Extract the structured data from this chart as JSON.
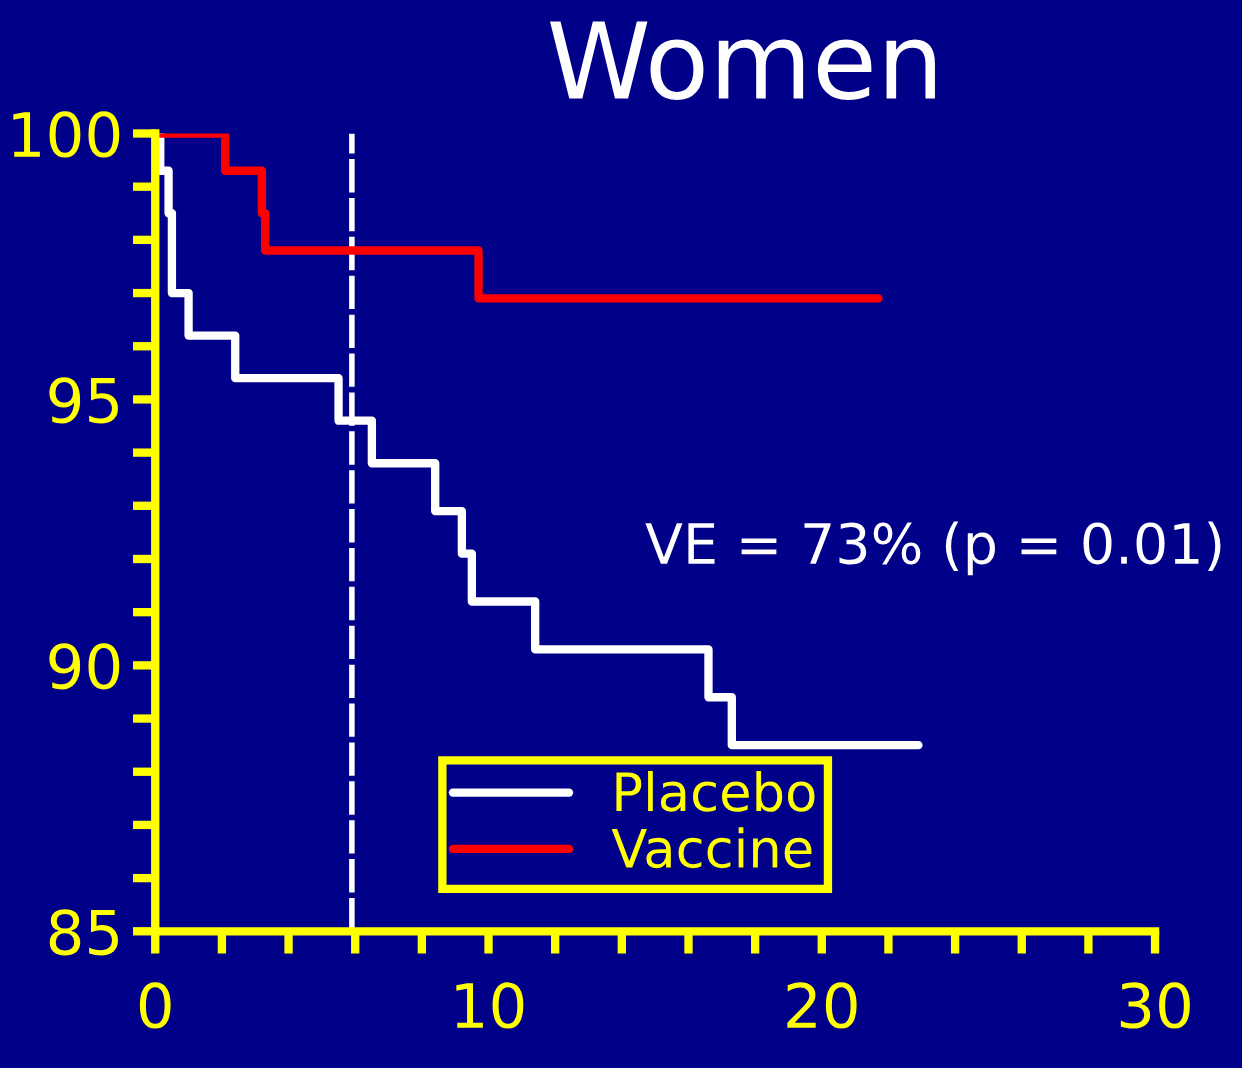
{
  "chart_data": {
    "type": "step",
    "title": "Women",
    "series": [
      {
        "name": "Placebo",
        "color": "#ffffff",
        "x": [
          0,
          0.15,
          0.4,
          0.5,
          1.0,
          2.4,
          5.5,
          6.5,
          8.4,
          9.2,
          9.5,
          11.4,
          16.6,
          17.3,
          22.9
        ],
        "values": [
          100,
          99.3,
          98.5,
          97.0,
          96.2,
          95.4,
          94.6,
          93.8,
          92.9,
          92.1,
          91.2,
          90.3,
          89.4,
          88.5,
          88.5
        ]
      },
      {
        "name": "Vaccine",
        "color": "#ff0000",
        "x": [
          0,
          2.1,
          3.2,
          3.3,
          9.7,
          21.7
        ],
        "values": [
          100,
          99.3,
          98.5,
          97.8,
          96.9,
          96.9
        ]
      }
    ],
    "xlim": [
      0,
      30
    ],
    "xticks": [
      0,
      {
        "value": 2,
        "label": null
      },
      {
        "value": 4,
        "label": null
      },
      {
        "value": 6,
        "label": null
      },
      {
        "value": 8,
        "label": null
      },
      10,
      {
        "value": 12,
        "label": null
      },
      {
        "value": 14,
        "label": null
      },
      {
        "value": 16,
        "label": null
      },
      {
        "value": 18,
        "label": null
      },
      20,
      {
        "value": 22,
        "label": null
      },
      {
        "value": 24,
        "label": null
      },
      {
        "value": 26,
        "label": null
      },
      {
        "value": 28,
        "label": null
      },
      30
    ],
    "ylim": [
      85,
      100
    ],
    "yticks": [
      85,
      {
        "value": 86,
        "label": null
      },
      {
        "value": 87,
        "label": null
      },
      {
        "value": 88,
        "label": null
      },
      {
        "value": 89,
        "label": null
      },
      90,
      {
        "value": 91,
        "label": null
      },
      {
        "value": 92,
        "label": null
      },
      {
        "value": 93,
        "label": null
      },
      {
        "value": 94,
        "label": null
      },
      95,
      {
        "value": 96,
        "label": null
      },
      {
        "value": 97,
        "label": null
      },
      {
        "value": 98,
        "label": null
      },
      {
        "value": 99,
        "label": null
      },
      100
    ],
    "ref_lines": [
      {
        "axis": "x",
        "value": 5.9,
        "color": "#ffffff",
        "line_style": "dashed"
      }
    ],
    "annotations": [
      "VE = 73% (p = 0.01)"
    ],
    "legend": "bottom",
    "grid": false
  }
}
